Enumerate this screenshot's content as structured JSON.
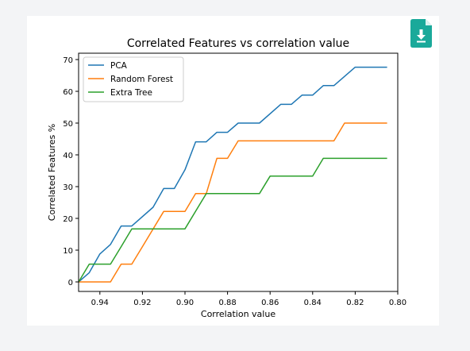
{
  "toolbar": {
    "download_icon": "download-file-icon",
    "accent_color": "#1aa99a"
  },
  "chart_data": {
    "type": "line",
    "title": "Correlated Features vs correlation value",
    "xlabel": "Correlation value",
    "ylabel": "Correlated Features %",
    "xlim": [
      0.95,
      0.8
    ],
    "ylim": [
      -3,
      72
    ],
    "x_reversed": true,
    "xticks": [
      0.94,
      0.92,
      0.9,
      0.88,
      0.86,
      0.84,
      0.82,
      0.8
    ],
    "xtick_labels": [
      "0.94",
      "0.92",
      "0.90",
      "0.88",
      "0.86",
      "0.84",
      "0.82",
      "0.80"
    ],
    "yticks": [
      0,
      10,
      20,
      30,
      40,
      50,
      60,
      70
    ],
    "ytick_labels": [
      "0",
      "10",
      "20",
      "30",
      "40",
      "50",
      "60",
      "70"
    ],
    "legend_position": "top-left",
    "grid": false,
    "series": [
      {
        "name": "PCA",
        "color": "#1f77b4",
        "x": [
          0.95,
          0.945,
          0.94,
          0.935,
          0.93,
          0.925,
          0.915,
          0.91,
          0.905,
          0.9,
          0.895,
          0.89,
          0.885,
          0.88,
          0.875,
          0.865,
          0.855,
          0.85,
          0.845,
          0.84,
          0.835,
          0.83,
          0.825,
          0.82,
          0.815,
          0.805
        ],
        "y": [
          0,
          2.9,
          8.8,
          11.8,
          17.6,
          17.6,
          23.5,
          29.4,
          29.4,
          35.3,
          44.1,
          44.1,
          47.1,
          47.1,
          50,
          50,
          55.9,
          55.9,
          58.8,
          58.8,
          61.8,
          61.8,
          64.7,
          67.6,
          67.6,
          67.6
        ]
      },
      {
        "name": "Random Forest",
        "color": "#ff7f0e",
        "x": [
          0.95,
          0.94,
          0.935,
          0.93,
          0.925,
          0.92,
          0.91,
          0.905,
          0.9,
          0.895,
          0.89,
          0.885,
          0.88,
          0.875,
          0.865,
          0.835,
          0.83,
          0.825,
          0.805
        ],
        "y": [
          0,
          0,
          0,
          5.6,
          5.6,
          11.1,
          22.2,
          22.2,
          22.2,
          27.8,
          27.8,
          38.9,
          38.9,
          44.4,
          44.4,
          44.4,
          44.4,
          50,
          50
        ]
      },
      {
        "name": "Extra Tree",
        "color": "#2ca02c",
        "x": [
          0.95,
          0.945,
          0.935,
          0.93,
          0.925,
          0.9,
          0.89,
          0.885,
          0.865,
          0.86,
          0.84,
          0.835,
          0.805
        ],
        "y": [
          0,
          5.6,
          5.6,
          11.1,
          16.7,
          16.7,
          27.8,
          27.8,
          27.8,
          33.3,
          33.3,
          38.9,
          38.9
        ]
      }
    ]
  }
}
